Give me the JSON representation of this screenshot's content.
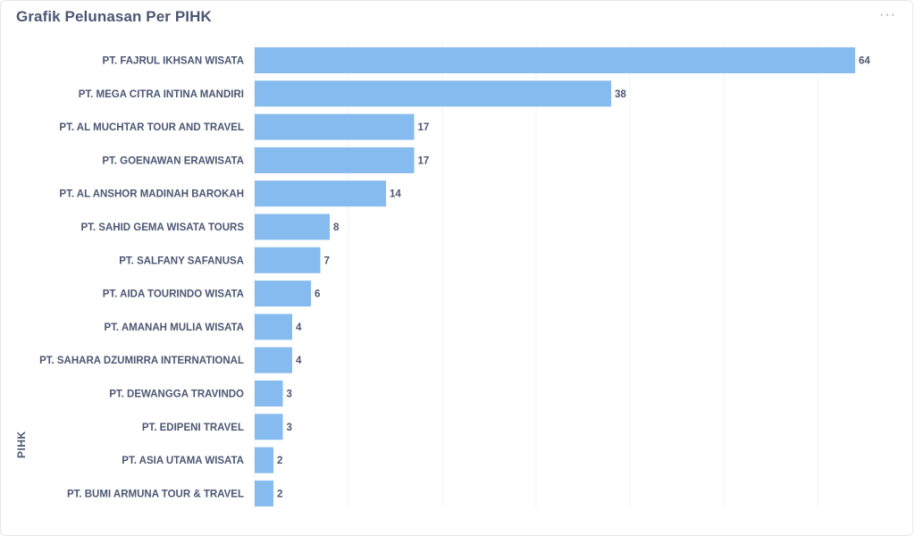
{
  "card": {
    "title": "Grafik Pelunasan Per PIHK",
    "more_icon_glyph": "···",
    "more_icon_name": "more-horizontal-icon"
  },
  "colors": {
    "bar": "#85bbee",
    "grid": "#eef0f3",
    "text": "#4c5773"
  },
  "chart_data": {
    "type": "bar",
    "orientation": "horizontal",
    "title": "Grafik Pelunasan Per PIHK",
    "ylabel": "PIHK",
    "xlabel": "",
    "xlim": [
      0,
      66
    ],
    "grid": true,
    "categories": [
      "PT. FAJRUL IKHSAN WISATA",
      "PT. MEGA CITRA INTINA MANDIRI",
      "PT. AL MUCHTAR TOUR AND TRAVEL",
      "PT. GOENAWAN ERAWISATA",
      "PT. AL ANSHOR MADINAH BAROKAH",
      "PT. SAHID GEMA WISATA TOURS",
      "PT. SALFANY SAFANUSA",
      "PT. AIDA TOURINDO WISATA",
      "PT. AMANAH MULIA WISATA",
      "PT. SAHARA DZUMIRRA INTERNATIONAL",
      "PT. DEWANGGA TRAVINDO",
      "PT. EDIPENI TRAVEL",
      "PT. ASIA UTAMA WISATA",
      "PT. BUMI ARMUNA TOUR & TRAVEL"
    ],
    "values": [
      64,
      38,
      17,
      17,
      14,
      8,
      7,
      6,
      4,
      4,
      3,
      3,
      2,
      2
    ]
  }
}
